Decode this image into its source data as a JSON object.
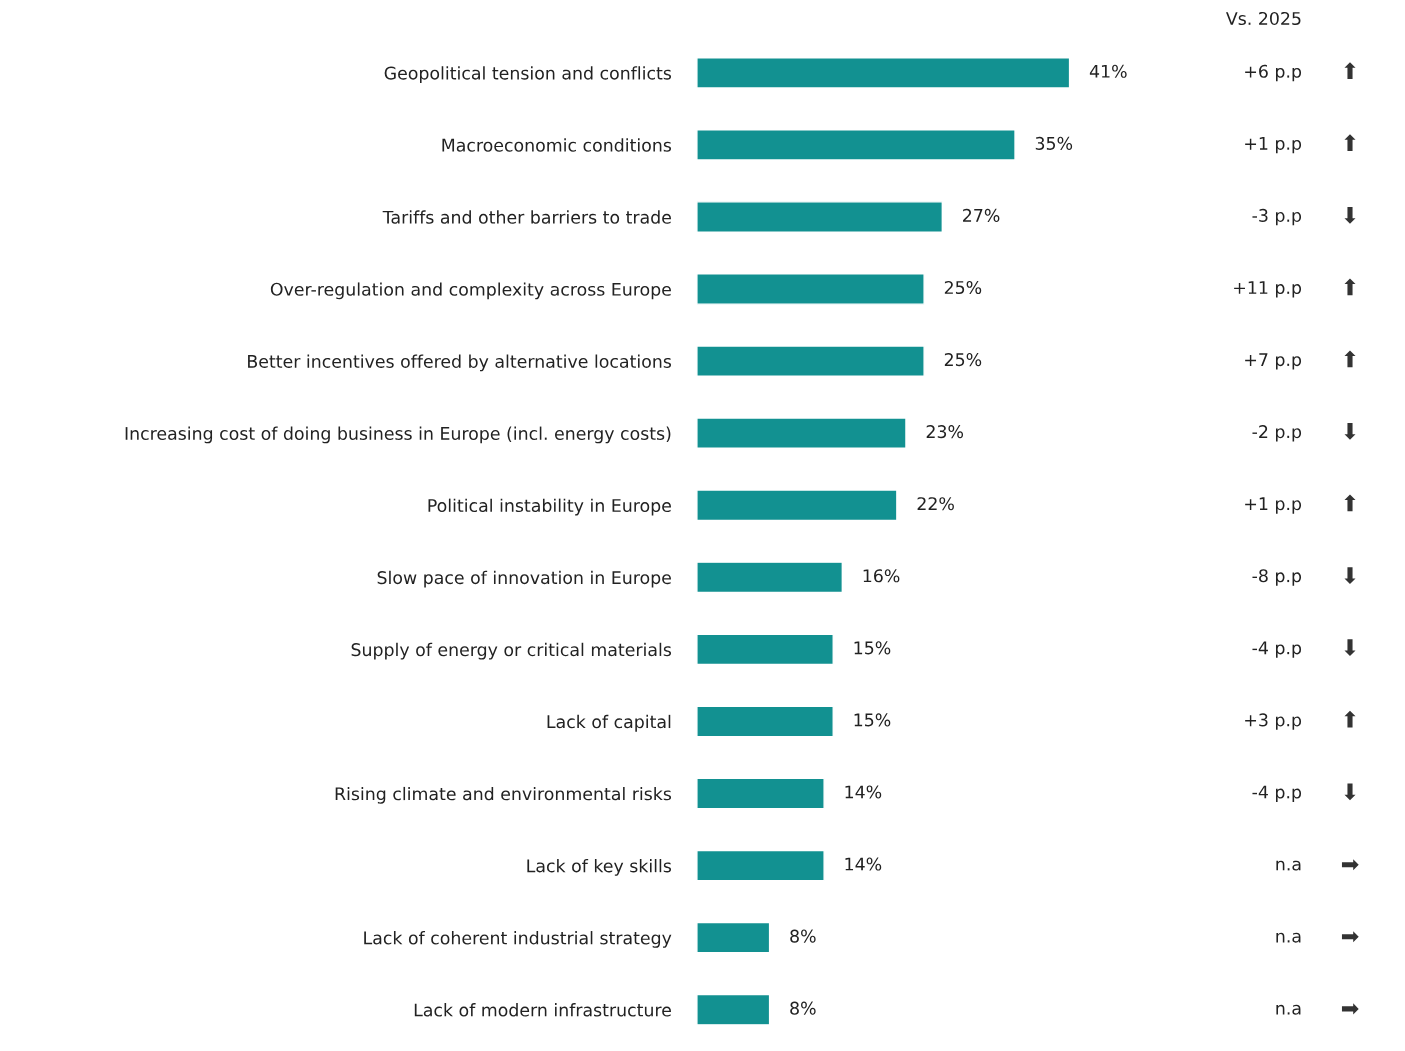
{
  "chart_data": {
    "type": "bar",
    "orientation": "horizontal",
    "value_labels": [
      "41%",
      "35%",
      "27%",
      "25%",
      "25%",
      "23%",
      "22%",
      "16%",
      "15%",
      "15%",
      "14%",
      "14%",
      "8%",
      "8%"
    ],
    "categories": [
      "Geopolitical tension and conflicts",
      "Macroeconomic conditions",
      "Tariffs and other barriers to trade",
      "Over-regulation and complexity across Europe",
      "Better incentives offered by alternative locations",
      "Increasing cost of doing business in Europe (incl. energy costs)",
      "Political instability in Europe",
      "Slow pace of innovation in Europe",
      "Supply of energy or critical materials",
      "Lack of capital",
      "Rising climate and environmental risks",
      "Lack of key skills",
      "Lack of coherent industrial strategy",
      "Lack of modern infrastructure"
    ],
    "values": [
      41,
      35,
      27,
      25,
      25,
      23,
      22,
      16,
      15,
      15,
      14,
      14,
      8,
      8
    ],
    "color": "#129191",
    "legend_title": "Vs. 2025",
    "annotations": [
      "+6 p.p ⬆",
      "+1 p.p ⬆",
      "-3 p.p ⬇",
      "+11 p.p ⬆",
      "+7 p.p ⬆",
      "-2 p.p ⬇",
      "+1 p.p ⬆",
      "-8 p.p ⬇",
      "-4 p.p ⬇",
      "+3 p.p ⬆",
      "-4 p.p ⬇",
      "n.a ➡",
      "n.a ➡",
      "n.a ➡"
    ]
  }
}
